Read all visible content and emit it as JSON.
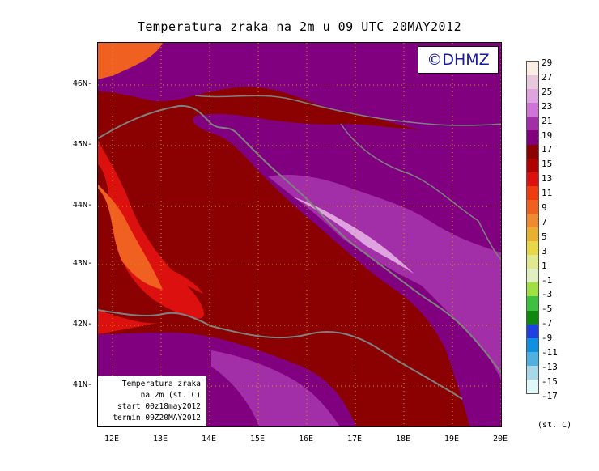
{
  "title": "Temperatura zraka na 2m u 09 UTC 20MAY2012",
  "copyright": "©DHMZ",
  "info_box": {
    "line1": "Temperatura zraka",
    "line2": "na 2m (st. C)",
    "line3": "start 00z18may2012",
    "line4": "termin 09Z20MAY2012"
  },
  "axes": {
    "lat_labels": [
      "46N",
      "45N",
      "44N",
      "43N",
      "42N",
      "41N"
    ],
    "lon_labels": [
      "12E",
      "13E",
      "14E",
      "15E",
      "16E",
      "17E",
      "18E",
      "19E",
      "20E"
    ]
  },
  "legend": {
    "unit": "(st. C)",
    "labels": [
      "29",
      "27",
      "25",
      "23",
      "21",
      "19",
      "17",
      "15",
      "13",
      "11",
      "9",
      "7",
      "5",
      "3",
      "1",
      "-1",
      "-3",
      "-5",
      "-7",
      "-9",
      "-11",
      "-13",
      "-15",
      "-17"
    ],
    "colors": [
      "#fbeee3",
      "#e8c8dc",
      "#dfa3df",
      "#cd74d6",
      "#a32fa8",
      "#800080",
      "#8b0000",
      "#b00000",
      "#dd1010",
      "#f03a10",
      "#f06020",
      "#f08a30",
      "#e8b030",
      "#e8d848",
      "#e0e890",
      "#e0f0c0",
      "#a0e040",
      "#40c040",
      "#108810",
      "#2040e0",
      "#1090e0",
      "#50b0e0",
      "#a8d8e8",
      "#e0f8f8"
    ]
  },
  "map_colors": {
    "sea": "#8b0000",
    "coast": "#808080",
    "land_warm": "#800080",
    "land_mid": "#a32fa8",
    "land_cool": "#cd74d6",
    "land_cold": "#dfa3df",
    "hot": "#dd1010",
    "hotter": "#f06020"
  }
}
